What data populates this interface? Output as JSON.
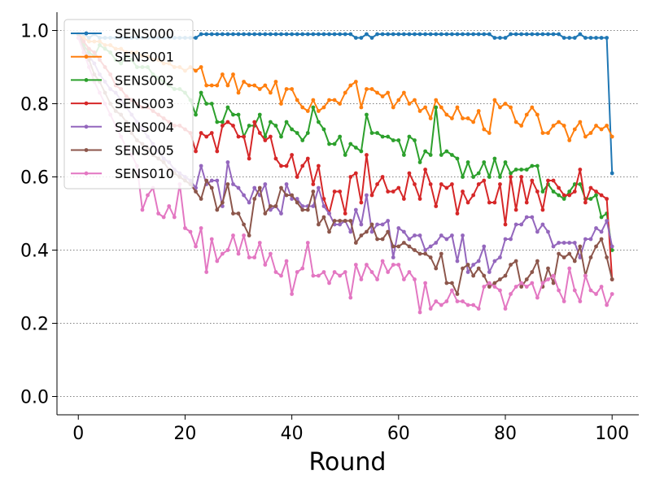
{
  "chart_data": {
    "type": "line",
    "xlabel": "Round",
    "ylabel": "",
    "xlim": [
      -4,
      105
    ],
    "ylim": [
      -0.05,
      1.05
    ],
    "xticks": [
      0,
      20,
      40,
      60,
      80,
      100
    ],
    "yticks": [
      0.0,
      0.2,
      0.4,
      0.6,
      0.8,
      1.0
    ],
    "ytick_labels": [
      "0.0",
      "0.2",
      "0.4",
      "0.6",
      "0.8",
      "1.0"
    ],
    "grid": "horizontal dotted",
    "legend_position": "top-left",
    "x": [
      0,
      1,
      2,
      3,
      4,
      5,
      6,
      7,
      8,
      9,
      10,
      11,
      12,
      13,
      14,
      15,
      16,
      17,
      18,
      19,
      20,
      21,
      22,
      23,
      24,
      25,
      26,
      27,
      28,
      29,
      30,
      31,
      32,
      33,
      34,
      35,
      36,
      37,
      38,
      39,
      40,
      41,
      42,
      43,
      44,
      45,
      46,
      47,
      48,
      49,
      50,
      51,
      52,
      53,
      54,
      55,
      56,
      57,
      58,
      59,
      60,
      61,
      62,
      63,
      64,
      65,
      66,
      67,
      68,
      69,
      70,
      71,
      72,
      73,
      74,
      75,
      76,
      77,
      78,
      79,
      80,
      81,
      82,
      83,
      84,
      85,
      86,
      87,
      88,
      89,
      90,
      91,
      92,
      93,
      94,
      95,
      96,
      97,
      98,
      99,
      100
    ],
    "series": [
      {
        "name": "SENS000",
        "color": "#1f77b4",
        "values": [
          0.99,
          0.99,
          0.98,
          0.99,
          0.98,
          0.98,
          0.98,
          0.98,
          0.98,
          0.98,
          0.98,
          0.98,
          0.98,
          0.98,
          0.98,
          0.98,
          0.98,
          0.98,
          0.98,
          0.98,
          0.98,
          0.98,
          0.98,
          0.99,
          0.99,
          0.99,
          0.99,
          0.99,
          0.99,
          0.99,
          0.99,
          0.99,
          0.99,
          0.99,
          0.99,
          0.99,
          0.99,
          0.99,
          0.99,
          0.99,
          0.99,
          0.99,
          0.99,
          0.99,
          0.99,
          0.99,
          0.99,
          0.99,
          0.99,
          0.99,
          0.99,
          0.99,
          0.98,
          0.98,
          0.99,
          0.98,
          0.99,
          0.99,
          0.99,
          0.99,
          0.99,
          0.99,
          0.99,
          0.99,
          0.99,
          0.99,
          0.99,
          0.99,
          0.99,
          0.99,
          0.99,
          0.99,
          0.99,
          0.99,
          0.99,
          0.99,
          0.99,
          0.99,
          0.98,
          0.98,
          0.98,
          0.99,
          0.99,
          0.99,
          0.99,
          0.99,
          0.99,
          0.99,
          0.99,
          0.99,
          0.99,
          0.98,
          0.98,
          0.98,
          0.99,
          0.98,
          0.98,
          0.98,
          0.98,
          0.98,
          0.61
        ]
      },
      {
        "name": "SENS001",
        "color": "#ff7f0e",
        "values": [
          0.99,
          0.98,
          0.97,
          0.97,
          0.97,
          0.96,
          0.96,
          0.95,
          0.95,
          0.94,
          0.94,
          0.94,
          0.93,
          0.93,
          0.92,
          0.92,
          0.91,
          0.91,
          0.9,
          0.9,
          0.89,
          0.9,
          0.89,
          0.9,
          0.85,
          0.85,
          0.85,
          0.88,
          0.85,
          0.88,
          0.83,
          0.86,
          0.85,
          0.85,
          0.84,
          0.85,
          0.83,
          0.86,
          0.8,
          0.84,
          0.84,
          0.81,
          0.79,
          0.78,
          0.81,
          0.78,
          0.79,
          0.81,
          0.81,
          0.8,
          0.83,
          0.85,
          0.86,
          0.79,
          0.84,
          0.84,
          0.83,
          0.82,
          0.83,
          0.79,
          0.81,
          0.83,
          0.8,
          0.81,
          0.78,
          0.79,
          0.76,
          0.81,
          0.79,
          0.77,
          0.76,
          0.79,
          0.76,
          0.76,
          0.75,
          0.78,
          0.73,
          0.72,
          0.81,
          0.79,
          0.8,
          0.79,
          0.75,
          0.74,
          0.77,
          0.79,
          0.77,
          0.72,
          0.72,
          0.74,
          0.75,
          0.74,
          0.7,
          0.73,
          0.75,
          0.71,
          0.72,
          0.74,
          0.73,
          0.74,
          0.71
        ]
      },
      {
        "name": "SENS002",
        "color": "#2ca02c",
        "values": [
          0.99,
          0.96,
          0.94,
          0.93,
          0.96,
          0.95,
          0.94,
          0.92,
          0.91,
          0.93,
          0.92,
          0.9,
          0.9,
          0.9,
          0.88,
          0.87,
          0.86,
          0.85,
          0.84,
          0.84,
          0.83,
          0.81,
          0.77,
          0.83,
          0.8,
          0.8,
          0.75,
          0.75,
          0.79,
          0.77,
          0.77,
          0.71,
          0.74,
          0.74,
          0.77,
          0.71,
          0.75,
          0.74,
          0.71,
          0.75,
          0.73,
          0.72,
          0.7,
          0.72,
          0.79,
          0.75,
          0.73,
          0.69,
          0.69,
          0.71,
          0.66,
          0.69,
          0.68,
          0.67,
          0.77,
          0.72,
          0.72,
          0.71,
          0.71,
          0.7,
          0.7,
          0.66,
          0.71,
          0.7,
          0.64,
          0.67,
          0.66,
          0.79,
          0.66,
          0.67,
          0.66,
          0.65,
          0.6,
          0.64,
          0.6,
          0.61,
          0.64,
          0.6,
          0.65,
          0.6,
          0.64,
          0.61,
          0.62,
          0.62,
          0.62,
          0.63,
          0.63,
          0.56,
          0.58,
          0.56,
          0.55,
          0.54,
          0.56,
          0.58,
          0.58,
          0.54,
          0.54,
          0.55,
          0.49,
          0.5,
          0.4
        ]
      },
      {
        "name": "SENS003",
        "color": "#d62728",
        "values": [
          0.99,
          0.97,
          0.95,
          0.94,
          0.92,
          0.9,
          0.88,
          0.85,
          0.84,
          0.82,
          0.81,
          0.8,
          0.79,
          0.79,
          0.78,
          0.77,
          0.76,
          0.75,
          0.74,
          0.74,
          0.73,
          0.72,
          0.67,
          0.72,
          0.71,
          0.72,
          0.67,
          0.74,
          0.75,
          0.74,
          0.71,
          0.71,
          0.65,
          0.75,
          0.72,
          0.7,
          0.71,
          0.65,
          0.63,
          0.63,
          0.66,
          0.6,
          0.63,
          0.65,
          0.58,
          0.63,
          0.54,
          0.5,
          0.56,
          0.56,
          0.5,
          0.6,
          0.61,
          0.53,
          0.66,
          0.55,
          0.58,
          0.6,
          0.56,
          0.56,
          0.57,
          0.54,
          0.61,
          0.58,
          0.54,
          0.62,
          0.58,
          0.52,
          0.58,
          0.57,
          0.58,
          0.5,
          0.56,
          0.53,
          0.55,
          0.58,
          0.59,
          0.53,
          0.53,
          0.58,
          0.47,
          0.6,
          0.51,
          0.6,
          0.53,
          0.59,
          0.56,
          0.51,
          0.59,
          0.59,
          0.57,
          0.55,
          0.55,
          0.56,
          0.62,
          0.53,
          0.57,
          0.56,
          0.55,
          0.54,
          0.32
        ]
      },
      {
        "name": "SENS004",
        "color": "#9467bd",
        "values": [
          0.98,
          0.95,
          0.93,
          0.91,
          0.88,
          0.86,
          0.84,
          0.83,
          0.81,
          0.79,
          0.77,
          0.75,
          0.73,
          0.71,
          0.69,
          0.67,
          0.65,
          0.64,
          0.62,
          0.61,
          0.6,
          0.59,
          0.57,
          0.63,
          0.58,
          0.59,
          0.59,
          0.52,
          0.64,
          0.58,
          0.57,
          0.55,
          0.53,
          0.57,
          0.55,
          0.58,
          0.51,
          0.52,
          0.5,
          0.58,
          0.54,
          0.54,
          0.52,
          0.52,
          0.52,
          0.57,
          0.52,
          0.5,
          0.47,
          0.47,
          0.48,
          0.45,
          0.51,
          0.47,
          0.55,
          0.45,
          0.47,
          0.47,
          0.48,
          0.38,
          0.46,
          0.45,
          0.43,
          0.44,
          0.44,
          0.4,
          0.41,
          0.42,
          0.44,
          0.43,
          0.44,
          0.37,
          0.44,
          0.34,
          0.36,
          0.37,
          0.41,
          0.34,
          0.37,
          0.38,
          0.43,
          0.43,
          0.47,
          0.47,
          0.49,
          0.49,
          0.45,
          0.47,
          0.45,
          0.41,
          0.42,
          0.42,
          0.42,
          0.42,
          0.38,
          0.43,
          0.43,
          0.46,
          0.45,
          0.48,
          0.41
        ]
      },
      {
        "name": "SENS005",
        "color": "#8c564b",
        "values": [
          0.99,
          0.95,
          0.92,
          0.88,
          0.86,
          0.83,
          0.8,
          0.78,
          0.77,
          0.75,
          0.72,
          0.7,
          0.69,
          0.68,
          0.66,
          0.65,
          0.64,
          0.62,
          0.61,
          0.6,
          0.59,
          0.58,
          0.56,
          0.54,
          0.59,
          0.57,
          0.51,
          0.53,
          0.58,
          0.5,
          0.5,
          0.47,
          0.44,
          0.54,
          0.57,
          0.5,
          0.52,
          0.52,
          0.57,
          0.55,
          0.55,
          0.53,
          0.51,
          0.51,
          0.56,
          0.47,
          0.49,
          0.45,
          0.48,
          0.48,
          0.48,
          0.48,
          0.42,
          0.44,
          0.45,
          0.47,
          0.43,
          0.43,
          0.45,
          0.41,
          0.41,
          0.42,
          0.41,
          0.4,
          0.39,
          0.39,
          0.38,
          0.35,
          0.39,
          0.31,
          0.31,
          0.28,
          0.35,
          0.36,
          0.33,
          0.35,
          0.33,
          0.3,
          0.31,
          0.32,
          0.33,
          0.36,
          0.37,
          0.3,
          0.32,
          0.34,
          0.37,
          0.3,
          0.35,
          0.31,
          0.39,
          0.38,
          0.39,
          0.37,
          0.41,
          0.33,
          0.38,
          0.41,
          0.43,
          0.38,
          0.32
        ]
      },
      {
        "name": "SENS010",
        "color": "#e377c2",
        "values": [
          0.98,
          0.94,
          0.9,
          0.86,
          0.83,
          0.8,
          0.77,
          0.74,
          0.71,
          0.68,
          0.66,
          0.63,
          0.51,
          0.55,
          0.57,
          0.5,
          0.49,
          0.52,
          0.49,
          0.58,
          0.46,
          0.45,
          0.41,
          0.46,
          0.34,
          0.43,
          0.37,
          0.39,
          0.4,
          0.44,
          0.39,
          0.44,
          0.38,
          0.38,
          0.42,
          0.36,
          0.39,
          0.34,
          0.33,
          0.37,
          0.28,
          0.34,
          0.35,
          0.42,
          0.33,
          0.33,
          0.34,
          0.31,
          0.34,
          0.33,
          0.34,
          0.27,
          0.36,
          0.32,
          0.36,
          0.34,
          0.32,
          0.37,
          0.34,
          0.36,
          0.36,
          0.32,
          0.34,
          0.32,
          0.23,
          0.31,
          0.24,
          0.26,
          0.25,
          0.26,
          0.29,
          0.26,
          0.26,
          0.25,
          0.25,
          0.24,
          0.3,
          0.31,
          0.3,
          0.29,
          0.24,
          0.28,
          0.3,
          0.31,
          0.3,
          0.31,
          0.27,
          0.31,
          0.32,
          0.33,
          0.29,
          0.26,
          0.35,
          0.29,
          0.26,
          0.33,
          0.29,
          0.28,
          0.3,
          0.25,
          0.28
        ]
      }
    ]
  }
}
